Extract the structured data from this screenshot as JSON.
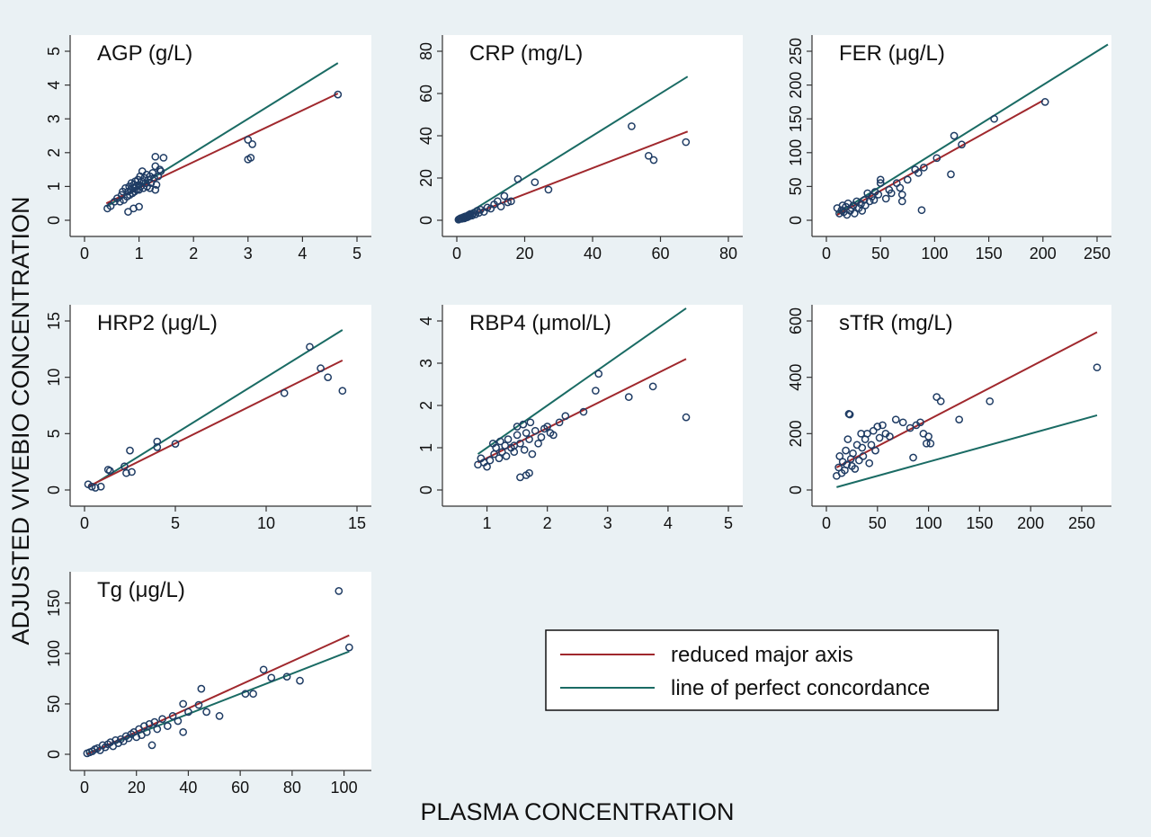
{
  "figure": {
    "ylabel": "ADJUSTED VIVEBIO CONCENTRATION",
    "xlabel": "PLASMA CONCENTRATION",
    "background": "#eaf1f4",
    "panel_background": "#ffffff",
    "point_color": "#1f3c64",
    "legend": {
      "placement": "bottom-right",
      "items": [
        {
          "label": "reduced major axis",
          "color": "#a0282d"
        },
        {
          "label": "line of perfect concordance",
          "color": "#1a6b64"
        }
      ]
    }
  },
  "chart_data": [
    {
      "type": "scatter",
      "title": "AGP (g/L)",
      "xlim": [
        0,
        5
      ],
      "ylim": [
        0,
        5
      ],
      "xticks": [
        "0",
        "1",
        "2",
        "3",
        "4",
        "5"
      ],
      "yticks": [
        "0",
        "1",
        "2",
        "3",
        "4",
        "5"
      ],
      "reduced_major_axis": [
        [
          0.4,
          0.5
        ],
        [
          4.65,
          3.75
        ]
      ],
      "perfect_concordance": [
        [
          0.4,
          0.4
        ],
        [
          4.65,
          4.65
        ]
      ],
      "points": [
        [
          0.42,
          0.35
        ],
        [
          0.48,
          0.42
        ],
        [
          0.55,
          0.55
        ],
        [
          0.6,
          0.65
        ],
        [
          0.65,
          0.55
        ],
        [
          0.68,
          0.75
        ],
        [
          0.7,
          0.85
        ],
        [
          0.72,
          0.6
        ],
        [
          0.75,
          0.95
        ],
        [
          0.78,
          0.7
        ],
        [
          0.8,
          0.85
        ],
        [
          0.82,
          1.0
        ],
        [
          0.83,
          0.75
        ],
        [
          0.85,
          0.9
        ],
        [
          0.86,
          1.1
        ],
        [
          0.88,
          0.8
        ],
        [
          0.9,
          0.95
        ],
        [
          0.9,
          1.05
        ],
        [
          0.92,
          0.85
        ],
        [
          0.93,
          1.15
        ],
        [
          0.95,
          1.0
        ],
        [
          0.96,
          0.9
        ],
        [
          0.98,
          1.2
        ],
        [
          1.0,
          1.05
        ],
        [
          1.0,
          0.9
        ],
        [
          1.02,
          1.3
        ],
        [
          1.03,
          1.0
        ],
        [
          1.05,
          1.15
        ],
        [
          1.06,
          1.45
        ],
        [
          1.08,
          0.95
        ],
        [
          1.1,
          1.25
        ],
        [
          1.12,
          1.1
        ],
        [
          1.14,
          1.35
        ],
        [
          1.15,
          1.0
        ],
        [
          1.17,
          1.2
        ],
        [
          1.2,
          1.3
        ],
        [
          1.22,
          1.1
        ],
        [
          1.25,
          1.4
        ],
        [
          1.28,
          1.25
        ],
        [
          1.3,
          1.6
        ],
        [
          1.32,
          1.05
        ],
        [
          1.35,
          1.3
        ],
        [
          1.38,
          1.5
        ],
        [
          1.4,
          1.45
        ],
        [
          1.45,
          1.85
        ],
        [
          1.3,
          1.88
        ],
        [
          0.8,
          0.25
        ],
        [
          0.9,
          0.35
        ],
        [
          1.0,
          0.4
        ],
        [
          1.2,
          0.95
        ],
        [
          1.3,
          0.9
        ],
        [
          3.0,
          2.38
        ],
        [
          3.08,
          2.25
        ],
        [
          3.0,
          1.8
        ],
        [
          3.05,
          1.85
        ],
        [
          4.65,
          3.72
        ]
      ]
    },
    {
      "type": "scatter",
      "title": "CRP (mg/L)",
      "xlim": [
        0,
        80
      ],
      "ylim": [
        0,
        80
      ],
      "xticks": [
        "0",
        "20",
        "40",
        "60",
        "80"
      ],
      "yticks": [
        "0",
        "20",
        "40",
        "60",
        "80"
      ],
      "reduced_major_axis": [
        [
          0.5,
          0.3
        ],
        [
          68,
          42
        ]
      ],
      "perfect_concordance": [
        [
          0.5,
          0.5
        ],
        [
          68,
          68
        ]
      ],
      "points": [
        [
          0.5,
          0.3
        ],
        [
          0.8,
          0.6
        ],
        [
          1.0,
          0.8
        ],
        [
          1.2,
          1.0
        ],
        [
          1.5,
          0.7
        ],
        [
          1.8,
          1.2
        ],
        [
          2.0,
          1.5
        ],
        [
          2.2,
          0.9
        ],
        [
          2.5,
          1.8
        ],
        [
          2.8,
          1.3
        ],
        [
          3.0,
          2.0
        ],
        [
          3.2,
          1.5
        ],
        [
          3.5,
          2.5
        ],
        [
          3.8,
          2.0
        ],
        [
          4.0,
          3.0
        ],
        [
          4.5,
          2.2
        ],
        [
          5.0,
          3.5
        ],
        [
          5.5,
          2.8
        ],
        [
          6.0,
          4.5
        ],
        [
          6.5,
          3.5
        ],
        [
          7.0,
          5.0
        ],
        [
          8.0,
          4.0
        ],
        [
          9.0,
          6.0
        ],
        [
          10.0,
          5.5
        ],
        [
          11.0,
          7.5
        ],
        [
          12.0,
          9.0
        ],
        [
          13.0,
          6.5
        ],
        [
          14.0,
          11.5
        ],
        [
          15.0,
          8.5
        ],
        [
          16.0,
          9.0
        ],
        [
          18.0,
          19.5
        ],
        [
          23.0,
          18.0
        ],
        [
          27.0,
          14.5
        ],
        [
          51.5,
          44.5
        ],
        [
          56.5,
          30.5
        ],
        [
          58.0,
          28.5
        ],
        [
          67.5,
          37.0
        ]
      ]
    },
    {
      "type": "scatter",
      "title": "FER (μg/L)",
      "xlim": [
        0,
        250
      ],
      "ylim": [
        0,
        250
      ],
      "xticks": [
        "0",
        "50",
        "100",
        "150",
        "200",
        "250"
      ],
      "yticks": [
        "0",
        "50",
        "100",
        "150",
        "200",
        "250"
      ],
      "reduced_major_axis": [
        [
          10,
          8
        ],
        [
          200,
          177
        ]
      ],
      "perfect_concordance": [
        [
          10,
          10
        ],
        [
          260,
          260
        ]
      ],
      "points": [
        [
          10,
          18
        ],
        [
          12,
          10
        ],
        [
          14,
          15
        ],
        [
          15,
          22
        ],
        [
          16,
          12
        ],
        [
          18,
          20
        ],
        [
          19,
          8
        ],
        [
          20,
          25
        ],
        [
          22,
          14
        ],
        [
          23,
          18
        ],
        [
          25,
          22
        ],
        [
          26,
          10
        ],
        [
          28,
          28
        ],
        [
          30,
          18
        ],
        [
          32,
          24
        ],
        [
          33,
          14
        ],
        [
          35,
          30
        ],
        [
          36,
          22
        ],
        [
          38,
          40
        ],
        [
          40,
          28
        ],
        [
          42,
          35
        ],
        [
          44,
          30
        ],
        [
          45,
          42
        ],
        [
          48,
          38
        ],
        [
          50,
          55
        ],
        [
          50,
          60
        ],
        [
          55,
          32
        ],
        [
          58,
          45
        ],
        [
          60,
          40
        ],
        [
          65,
          55
        ],
        [
          68,
          48
        ],
        [
          70,
          28
        ],
        [
          70,
          38
        ],
        [
          75,
          60
        ],
        [
          82,
          75
        ],
        [
          85,
          70
        ],
        [
          88,
          15
        ],
        [
          90,
          78
        ],
        [
          102,
          92
        ],
        [
          115,
          68
        ],
        [
          118,
          125
        ],
        [
          125,
          112
        ],
        [
          155,
          150
        ],
        [
          202,
          175
        ]
      ]
    },
    {
      "type": "scatter",
      "title": "HRP2 (μg/L)",
      "xlim": [
        0,
        15
      ],
      "ylim": [
        0,
        15
      ],
      "xticks": [
        "0",
        "5",
        "10",
        "15"
      ],
      "yticks": [
        "0",
        "5",
        "10",
        "15"
      ],
      "reduced_major_axis": [
        [
          0.2,
          0.3
        ],
        [
          14.2,
          11.5
        ]
      ],
      "perfect_concordance": [
        [
          0.2,
          0.2
        ],
        [
          14.2,
          14.2
        ]
      ],
      "points": [
        [
          0.2,
          0.5
        ],
        [
          0.4,
          0.3
        ],
        [
          0.6,
          0.2
        ],
        [
          0.9,
          0.3
        ],
        [
          1.3,
          1.8
        ],
        [
          1.4,
          1.7
        ],
        [
          2.2,
          2.1
        ],
        [
          2.3,
          1.5
        ],
        [
          2.5,
          3.5
        ],
        [
          2.6,
          1.6
        ],
        [
          4.0,
          4.3
        ],
        [
          4.0,
          3.8
        ],
        [
          5.0,
          4.1
        ],
        [
          11.0,
          8.6
        ],
        [
          12.4,
          12.7
        ],
        [
          13.0,
          10.8
        ],
        [
          13.4,
          10.0
        ],
        [
          14.2,
          8.8
        ]
      ]
    },
    {
      "type": "scatter",
      "title": "RBP4 (μmol/L)",
      "xlim": [
        0.5,
        5
      ],
      "ylim": [
        0,
        4
      ],
      "xticks": [
        "1",
        "2",
        "3",
        "4",
        "5"
      ],
      "yticks": [
        "0",
        "1",
        "2",
        "3",
        "4"
      ],
      "reduced_major_axis": [
        [
          0.85,
          0.65
        ],
        [
          4.3,
          3.1
        ]
      ],
      "perfect_concordance": [
        [
          0.85,
          0.85
        ],
        [
          4.3,
          4.3
        ]
      ],
      "points": [
        [
          0.85,
          0.6
        ],
        [
          0.9,
          0.75
        ],
        [
          0.95,
          0.65
        ],
        [
          1.0,
          0.55
        ],
        [
          1.05,
          0.7
        ],
        [
          1.1,
          1.1
        ],
        [
          1.12,
          0.85
        ],
        [
          1.15,
          1.0
        ],
        [
          1.2,
          0.75
        ],
        [
          1.22,
          1.15
        ],
        [
          1.25,
          0.9
        ],
        [
          1.3,
          1.05
        ],
        [
          1.32,
          0.8
        ],
        [
          1.35,
          1.2
        ],
        [
          1.4,
          1.0
        ],
        [
          1.45,
          0.9
        ],
        [
          1.5,
          1.3
        ],
        [
          1.5,
          1.5
        ],
        [
          1.55,
          1.1
        ],
        [
          1.6,
          1.55
        ],
        [
          1.62,
          0.95
        ],
        [
          1.65,
          1.35
        ],
        [
          1.7,
          1.2
        ],
        [
          1.72,
          1.6
        ],
        [
          1.75,
          0.85
        ],
        [
          1.8,
          1.4
        ],
        [
          1.85,
          1.1
        ],
        [
          1.9,
          1.25
        ],
        [
          1.95,
          1.45
        ],
        [
          2.0,
          1.5
        ],
        [
          2.05,
          1.35
        ],
        [
          2.1,
          1.3
        ],
        [
          2.2,
          1.6
        ],
        [
          2.3,
          1.75
        ],
        [
          2.6,
          1.85
        ],
        [
          2.8,
          2.35
        ],
        [
          2.85,
          2.75
        ],
        [
          3.35,
          2.2
        ],
        [
          3.75,
          2.45
        ],
        [
          4.3,
          1.72
        ],
        [
          1.55,
          0.3
        ],
        [
          1.65,
          0.35
        ],
        [
          1.7,
          0.4
        ],
        [
          1.45,
          1.05
        ]
      ]
    },
    {
      "type": "scatter",
      "title": "sTfR (mg/L)",
      "xlim": [
        0,
        265
      ],
      "ylim": [
        0,
        600
      ],
      "xticks": [
        "0",
        "50",
        "100",
        "150",
        "200",
        "250"
      ],
      "yticks": [
        "0",
        "200",
        "400",
        "600"
      ],
      "reduced_major_axis": [
        [
          10,
          80
        ],
        [
          265,
          560
        ]
      ],
      "perfect_concordance": [
        [
          10,
          10
        ],
        [
          265,
          265
        ]
      ],
      "points": [
        [
          10,
          50
        ],
        [
          12,
          80
        ],
        [
          13,
          120
        ],
        [
          15,
          60
        ],
        [
          16,
          100
        ],
        [
          18,
          70
        ],
        [
          19,
          140
        ],
        [
          20,
          90
        ],
        [
          21,
          180
        ],
        [
          22,
          270
        ],
        [
          23,
          268
        ],
        [
          24,
          110
        ],
        [
          25,
          85
        ],
        [
          26,
          130
        ],
        [
          28,
          75
        ],
        [
          30,
          160
        ],
        [
          32,
          105
        ],
        [
          34,
          200
        ],
        [
          35,
          150
        ],
        [
          36,
          120
        ],
        [
          38,
          180
        ],
        [
          40,
          200
        ],
        [
          42,
          95
        ],
        [
          44,
          160
        ],
        [
          46,
          210
        ],
        [
          48,
          140
        ],
        [
          50,
          225
        ],
        [
          52,
          185
        ],
        [
          55,
          230
        ],
        [
          58,
          200
        ],
        [
          62,
          190
        ],
        [
          68,
          250
        ],
        [
          75,
          240
        ],
        [
          82,
          220
        ],
        [
          85,
          115
        ],
        [
          88,
          230
        ],
        [
          92,
          240
        ],
        [
          95,
          200
        ],
        [
          98,
          165
        ],
        [
          100,
          190
        ],
        [
          102,
          165
        ],
        [
          108,
          330
        ],
        [
          112,
          315
        ],
        [
          130,
          250
        ],
        [
          160,
          315
        ],
        [
          265,
          435
        ]
      ]
    },
    {
      "type": "scatter",
      "title": "Tg (μg/L)",
      "xlim": [
        0,
        105
      ],
      "ylim": [
        0,
        165
      ],
      "xticks": [
        "0",
        "20",
        "40",
        "60",
        "80",
        "100"
      ],
      "yticks": [
        "0",
        "50",
        "100",
        "150"
      ],
      "reduced_major_axis": [
        [
          1,
          0
        ],
        [
          102,
          118
        ]
      ],
      "perfect_concordance": [
        [
          1,
          1
        ],
        [
          102,
          102
        ]
      ],
      "points": [
        [
          1,
          1
        ],
        [
          2,
          2
        ],
        [
          3,
          3
        ],
        [
          4,
          5
        ],
        [
          5,
          6
        ],
        [
          6,
          4
        ],
        [
          7,
          9
        ],
        [
          8,
          7
        ],
        [
          9,
          10
        ],
        [
          10,
          12
        ],
        [
          11,
          8
        ],
        [
          12,
          14
        ],
        [
          13,
          11
        ],
        [
          14,
          15
        ],
        [
          15,
          13
        ],
        [
          16,
          18
        ],
        [
          17,
          16
        ],
        [
          18,
          20
        ],
        [
          19,
          22
        ],
        [
          20,
          17
        ],
        [
          21,
          25
        ],
        [
          22,
          19
        ],
        [
          23,
          28
        ],
        [
          24,
          22
        ],
        [
          25,
          30
        ],
        [
          26,
          9
        ],
        [
          27,
          32
        ],
        [
          28,
          25
        ],
        [
          30,
          35
        ],
        [
          32,
          28
        ],
        [
          34,
          38
        ],
        [
          36,
          33
        ],
        [
          38,
          22
        ],
        [
          38,
          50
        ],
        [
          40,
          42
        ],
        [
          44,
          49
        ],
        [
          45,
          65
        ],
        [
          47,
          42
        ],
        [
          52,
          38
        ],
        [
          62,
          60
        ],
        [
          65,
          60
        ],
        [
          69,
          84
        ],
        [
          72,
          76
        ],
        [
          78,
          77
        ],
        [
          83,
          73
        ],
        [
          98,
          162
        ],
        [
          102,
          106
        ]
      ]
    }
  ]
}
